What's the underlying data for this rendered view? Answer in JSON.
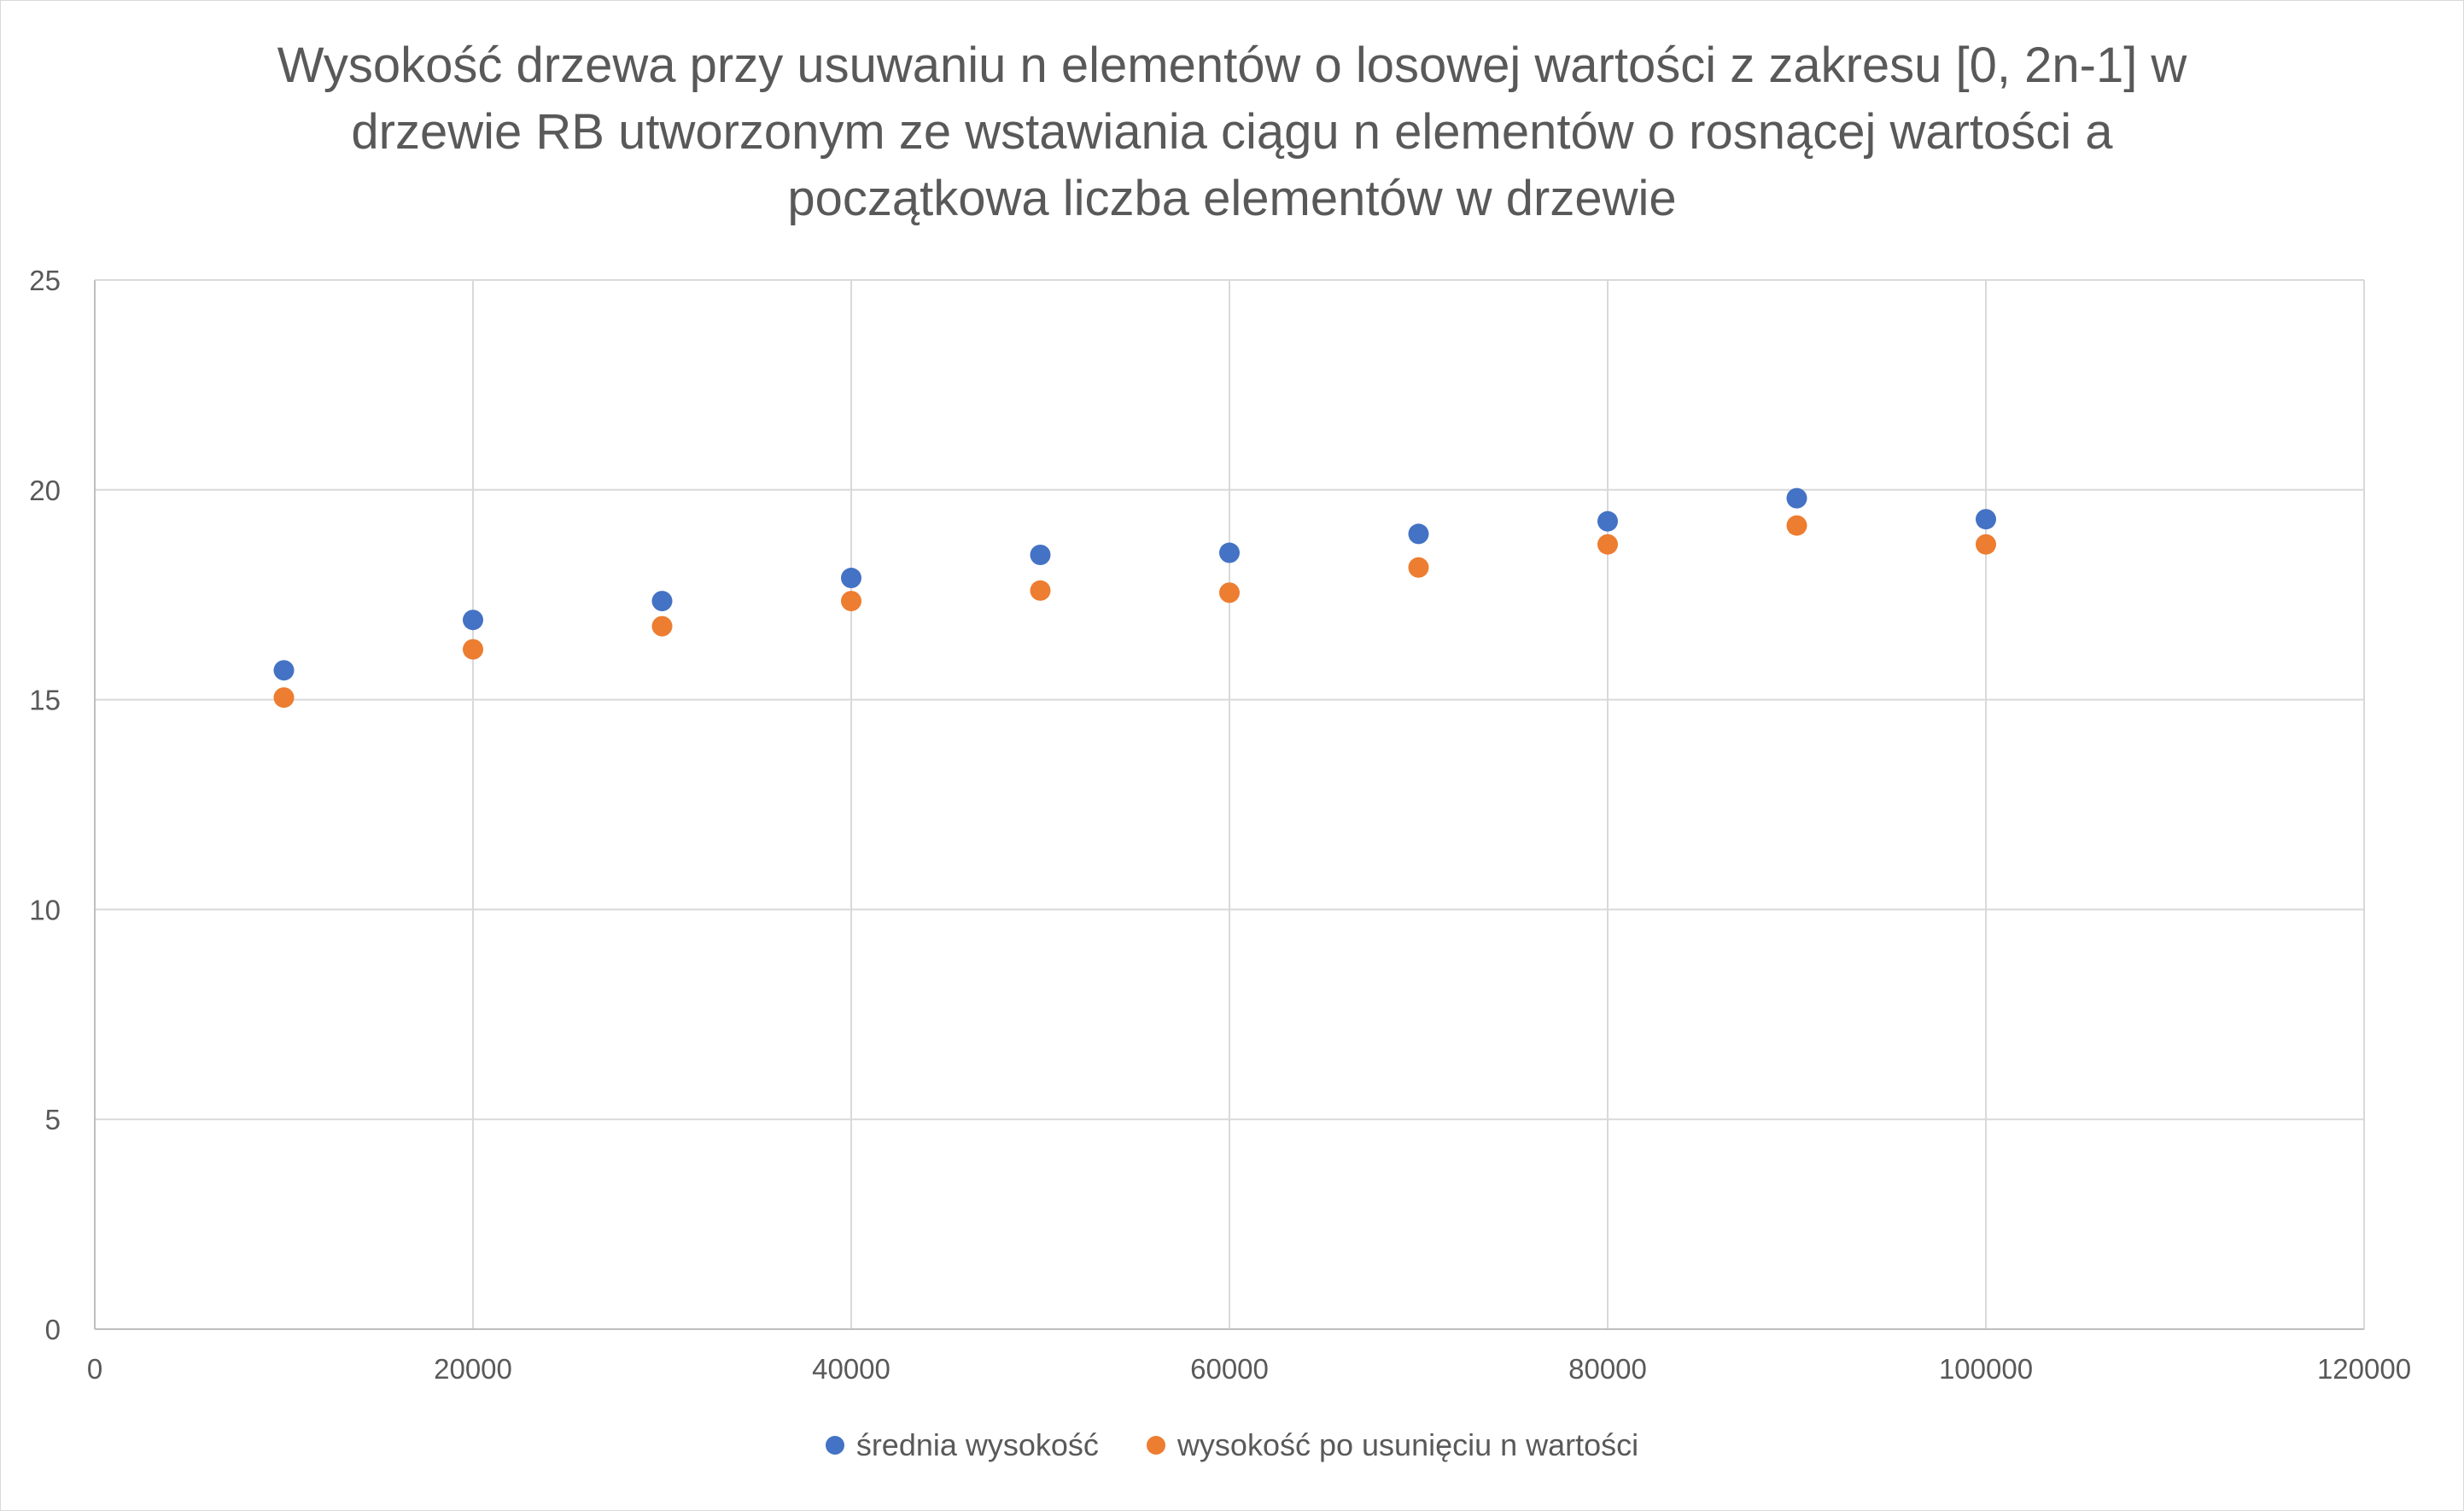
{
  "chart_data": {
    "type": "scatter",
    "title": "Wysokość drzewa przy usuwaniu n elementów o losowej wartości z zakresu [0, 2n-1] w drzewie RB utworzonym ze wstawiania ciągu n elementów o rosnącej wartości a początkowa liczba elementów w drzewie",
    "title_lines": [
      "Wysokość drzewa przy usuwaniu n elementów o losowej wartości z zakresu [0, 2n-1] w",
      "drzewie RB utworzonym ze wstawiania ciągu n elementów o rosnącej wartości a",
      "początkowa liczba elementów w drzewie"
    ],
    "xlabel": "",
    "ylabel": "",
    "xlim": [
      0,
      120000
    ],
    "ylim": [
      0,
      25
    ],
    "x_ticks": [
      0,
      20000,
      40000,
      60000,
      80000,
      100000,
      120000
    ],
    "y_ticks": [
      0,
      5,
      10,
      15,
      20,
      25
    ],
    "grid": true,
    "legend_position": "bottom",
    "x": [
      10000,
      20000,
      30000,
      40000,
      50000,
      60000,
      70000,
      80000,
      90000,
      100000
    ],
    "series": [
      {
        "name": "średnia wysokość",
        "color": "#4472c4",
        "values": [
          15.7,
          16.9,
          17.35,
          17.9,
          18.45,
          18.5,
          18.95,
          19.25,
          19.8,
          19.3
        ]
      },
      {
        "name": "wysokość po usunięciu n wartości",
        "color": "#ed7d31",
        "values": [
          15.05,
          16.2,
          16.75,
          17.35,
          17.6,
          17.55,
          18.15,
          18.7,
          19.15,
          18.7
        ]
      }
    ]
  }
}
